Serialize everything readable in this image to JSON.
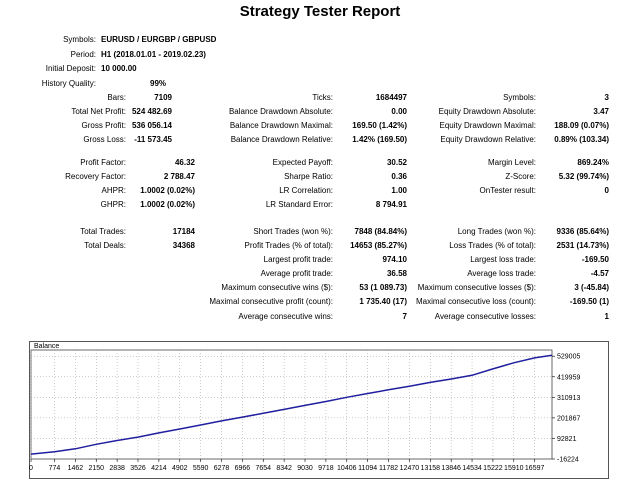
{
  "report": {
    "title": "Strategy Tester Report",
    "header": [
      {
        "label": "Symbols:",
        "value": "EURUSD / EURGBP / GBPUSD"
      },
      {
        "label": "Period:",
        "value": "H1 (2018.01.01 - 2019.02.23)"
      },
      {
        "label": "Initial Deposit:",
        "value": "10 000.00"
      },
      {
        "label": "History Quality:",
        "value": "99%"
      }
    ],
    "block1": {
      "col1": [
        {
          "label": "Bars:",
          "value": "7109"
        },
        {
          "label": "Total Net Profit:",
          "value": "524 482.69"
        },
        {
          "label": "Gross Profit:",
          "value": "536 056.14"
        },
        {
          "label": "Gross Loss:",
          "value": "-11 573.45"
        }
      ],
      "col2": [
        {
          "label": "Ticks:",
          "value": "1684497"
        },
        {
          "label": "Balance Drawdown Absolute:",
          "value": "0.00"
        },
        {
          "label": "Balance Drawdown Maximal:",
          "value": "169.50 (1.42%)"
        },
        {
          "label": "Balance Drawdown Relative:",
          "value": "1.42% (169.50)"
        }
      ],
      "col3": [
        {
          "label": "Symbols:",
          "value": "3"
        },
        {
          "label": "Equity Drawdown Absolute:",
          "value": "3.47"
        },
        {
          "label": "Equity Drawdown Maximal:",
          "value": "188.09 (0.07%)"
        },
        {
          "label": "Equity Drawdown Relative:",
          "value": "0.89% (103.34)"
        }
      ]
    },
    "block2": {
      "col1": [
        {
          "label": "Profit Factor:",
          "value": "46.32"
        },
        {
          "label": "Recovery Factor:",
          "value": "2 788.47"
        },
        {
          "label": "AHPR:",
          "value": "1.0002 (0.02%)"
        },
        {
          "label": "GHPR:",
          "value": "1.0002 (0.02%)"
        }
      ],
      "col2": [
        {
          "label": "Expected Payoff:",
          "value": "30.52"
        },
        {
          "label": "Sharpe Ratio:",
          "value": "0.36"
        },
        {
          "label": "LR Correlation:",
          "value": "1.00"
        },
        {
          "label": "LR Standard Error:",
          "value": "8 794.91"
        }
      ],
      "col3": [
        {
          "label": "Margin Level:",
          "value": "869.24%"
        },
        {
          "label": "Z-Score:",
          "value": "5.32 (99.74%)"
        },
        {
          "label": "OnTester result:",
          "value": "0"
        }
      ]
    },
    "block3": {
      "col1": [
        {
          "label": "Total Trades:",
          "value": "17184"
        },
        {
          "label": "Total Deals:",
          "value": "34368"
        }
      ],
      "col2": [
        {
          "label": "Short Trades (won %):",
          "value": "7848 (84.84%)"
        },
        {
          "label": "Profit Trades (% of total):",
          "value": "14653 (85.27%)"
        },
        {
          "label": "Largest profit trade:",
          "value": "974.10"
        },
        {
          "label": "Average profit trade:",
          "value": "36.58"
        },
        {
          "label": "Maximum consecutive wins ($):",
          "value": "53 (1 089.73)"
        },
        {
          "label": "Maximal consecutive profit (count):",
          "value": "1 735.40 (17)"
        },
        {
          "label": "Average consecutive wins:",
          "value": "7"
        }
      ],
      "col3": [
        {
          "label": "Long Trades (won %):",
          "value": "9336 (85.64%)"
        },
        {
          "label": "Loss Trades (% of total):",
          "value": "2531 (14.73%)"
        },
        {
          "label": "Largest loss trade:",
          "value": "-169.50"
        },
        {
          "label": "Average loss trade:",
          "value": "-4.57"
        },
        {
          "label": "Maximum consecutive losses ($):",
          "value": "3 (-45.84)"
        },
        {
          "label": "Maximal consecutive loss (count):",
          "value": "-169.50 (1)"
        },
        {
          "label": "Average consecutive losses:",
          "value": "1"
        }
      ]
    }
  },
  "chart_data": {
    "type": "line",
    "title": "Balance",
    "xlabel": "",
    "ylabel": "",
    "xlim": [
      0,
      17169
    ],
    "ylim": [
      -16224,
      562000
    ],
    "xticks": [
      0,
      774,
      1462,
      2150,
      2838,
      3526,
      4214,
      4902,
      5590,
      6278,
      6966,
      7654,
      8342,
      9030,
      9718,
      10406,
      11094,
      11782,
      12470,
      13158,
      13846,
      14534,
      15222,
      15910,
      16597
    ],
    "yticks": [
      529005,
      419959,
      310913,
      201867,
      92821,
      -16224
    ],
    "grid": true,
    "line_color": "#1f1f9f",
    "series": [
      {
        "name": "",
        "x": [
          0,
          774,
          1462,
          2150,
          2838,
          3526,
          4214,
          4902,
          5590,
          6278,
          6966,
          7654,
          8342,
          9030,
          9718,
          10406,
          11094,
          11782,
          12470,
          13158,
          13846,
          14534,
          15222,
          15910,
          16597,
          17169
        ],
        "y": [
          10000,
          22000,
          38000,
          62000,
          82000,
          100000,
          122000,
          143000,
          164000,
          186000,
          206000,
          226000,
          247000,
          268000,
          289000,
          311000,
          331000,
          351000,
          370000,
          390000,
          408000,
          428000,
          462000,
          494000,
          520000,
          534000
        ]
      }
    ]
  }
}
